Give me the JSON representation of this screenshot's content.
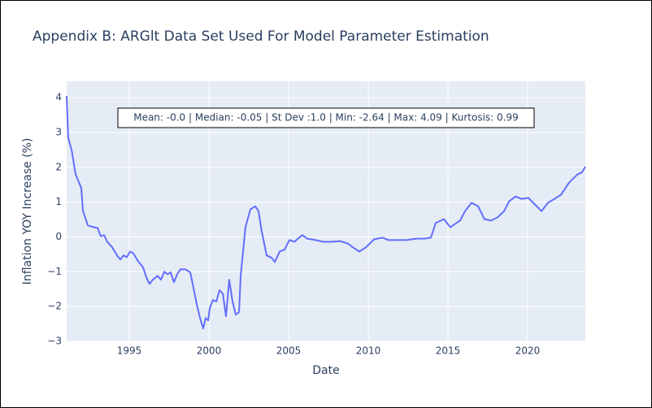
{
  "chart_data": {
    "type": "line",
    "title": "Appendix B: ARGlt Data Set Used For Model Parameter Estimation",
    "x_label": "Date",
    "y_label": "Inflation YOY Increase (%)",
    "annotation": "Mean: -0.0 | Median: -0.05 | St Dev :1.0 | Min: -2.64 | Max: 4.09 | Kurtosis: 0.99",
    "xlim": [
      1991.07,
      2023.62
    ],
    "xticks": [
      1995,
      2000,
      2005,
      2010,
      2015,
      2020
    ],
    "ylim": [
      -3,
      4.47
    ],
    "yticks": [
      {
        "value": -3,
        "label": "−3"
      },
      {
        "value": -2,
        "label": "−2"
      },
      {
        "value": -1,
        "label": "−1"
      },
      0,
      1,
      2,
      3,
      4
    ],
    "grid": true,
    "x": [
      1991.07,
      1991.17,
      1991.38,
      1991.63,
      1991.99,
      1992.09,
      1992.4,
      1992.75,
      1993.01,
      1993.21,
      1993.42,
      1993.62,
      1993.93,
      1994.23,
      1994.44,
      1994.64,
      1994.85,
      1995.05,
      1995.25,
      1995.56,
      1995.87,
      1996.07,
      1996.27,
      1996.48,
      1996.78,
      1996.99,
      1997.19,
      1997.4,
      1997.6,
      1997.8,
      1998.01,
      1998.21,
      1998.52,
      1998.83,
      1999.03,
      1999.23,
      1999.44,
      1999.64,
      1999.79,
      1999.95,
      2000.05,
      2000.25,
      2000.46,
      2000.66,
      2000.87,
      2001.07,
      2001.27,
      2001.48,
      2001.68,
      2001.89,
      2001.99,
      2002.29,
      2002.6,
      2002.91,
      2003.11,
      2003.31,
      2003.62,
      2003.93,
      2004.13,
      2004.44,
      2004.74,
      2005.05,
      2005.36,
      2005.66,
      2005.87,
      2006.17,
      2006.68,
      2007.19,
      2007.7,
      2008.21,
      2008.72,
      2009.03,
      2009.44,
      2009.85,
      2010.36,
      2010.87,
      2011.27,
      2011.89,
      2012.4,
      2013.01,
      2013.52,
      2013.93,
      2014.23,
      2014.74,
      2015.15,
      2015.76,
      2016.07,
      2016.48,
      2016.89,
      2017.29,
      2017.7,
      2018.11,
      2018.52,
      2018.83,
      2019.23,
      2019.64,
      2020.05,
      2020.46,
      2020.87,
      2021.27,
      2021.68,
      2022.09,
      2022.6,
      2023.11,
      2023.42,
      2023.62
    ],
    "series": [
      {
        "name": "ARGlt",
        "color": "#636efa",
        "values": [
          4.05,
          2.84,
          2.5,
          1.8,
          1.4,
          0.75,
          0.33,
          0.28,
          0.26,
          0.02,
          0.05,
          -0.14,
          -0.3,
          -0.53,
          -0.65,
          -0.53,
          -0.58,
          -0.42,
          -0.47,
          -0.7,
          -0.88,
          -1.16,
          -1.35,
          -1.23,
          -1.12,
          -1.23,
          -1.0,
          -1.07,
          -1.02,
          -1.3,
          -1.07,
          -0.93,
          -0.93,
          -1.02,
          -1.47,
          -1.93,
          -2.33,
          -2.63,
          -2.33,
          -2.4,
          -2.05,
          -1.81,
          -1.86,
          -1.53,
          -1.63,
          -2.28,
          -1.23,
          -1.86,
          -2.23,
          -2.16,
          -1.12,
          0.28,
          0.79,
          0.88,
          0.74,
          0.16,
          -0.53,
          -0.6,
          -0.72,
          -0.42,
          -0.37,
          -0.09,
          -0.14,
          -0.02,
          0.05,
          -0.05,
          -0.09,
          -0.14,
          -0.14,
          -0.12,
          -0.19,
          -0.3,
          -0.42,
          -0.3,
          -0.07,
          -0.02,
          -0.09,
          -0.09,
          -0.09,
          -0.05,
          -0.05,
          -0.02,
          0.4,
          0.51,
          0.28,
          0.47,
          0.74,
          0.98,
          0.88,
          0.51,
          0.47,
          0.56,
          0.74,
          1.02,
          1.16,
          1.09,
          1.12,
          0.93,
          0.74,
          0.98,
          1.09,
          1.21,
          1.56,
          1.79,
          1.86,
          2.02
        ]
      }
    ]
  }
}
